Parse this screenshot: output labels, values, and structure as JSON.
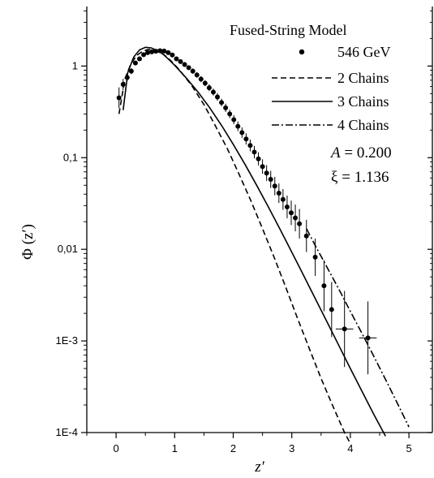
{
  "chart_data": {
    "type": "scatter",
    "title": "",
    "xlabel": "z′",
    "ylabel": "Φ (z′)",
    "xlim": [
      -0.5,
      5.4
    ],
    "ylim_log10": [
      -4,
      0.65
    ],
    "log_y": true,
    "x_ticks": [
      0,
      1,
      2,
      3,
      4,
      5
    ],
    "x_tick_labels": [
      "0",
      "1",
      "2",
      "3",
      "4",
      "5"
    ],
    "y_ticks": [
      0.0001,
      0.001,
      0.01,
      0.1,
      1
    ],
    "y_tick_labels": [
      "1E-4",
      "1E-3",
      "0,01",
      "0,1",
      "1"
    ],
    "legend_title": "Fused-String Model",
    "legend_position": "top-right",
    "annotations": {
      "param_a_symbol": "A",
      "param_a_value": " = 0.200",
      "param_xi_symbol": "ξ",
      "param_xi_value": " = 1.136"
    },
    "series": [
      {
        "name": "546 GeV",
        "style": "points-with-errorbars",
        "x": [
          0.05,
          0.12,
          0.19,
          0.26,
          0.33,
          0.4,
          0.47,
          0.54,
          0.61,
          0.68,
          0.75,
          0.82,
          0.89,
          0.96,
          1.03,
          1.1,
          1.17,
          1.24,
          1.31,
          1.38,
          1.45,
          1.52,
          1.59,
          1.66,
          1.73,
          1.8,
          1.87,
          1.94,
          2.01,
          2.08,
          2.15,
          2.22,
          2.29,
          2.36,
          2.43,
          2.5,
          2.57,
          2.64,
          2.71,
          2.78,
          2.85,
          2.92,
          2.99,
          3.06,
          3.13,
          3.25,
          3.4,
          3.55,
          3.68,
          3.9,
          4.3
        ],
        "y": [
          0.45,
          0.63,
          0.75,
          0.88,
          1.08,
          1.2,
          1.33,
          1.4,
          1.43,
          1.45,
          1.47,
          1.46,
          1.4,
          1.32,
          1.2,
          1.12,
          1.04,
          0.96,
          0.88,
          0.8,
          0.72,
          0.65,
          0.58,
          0.52,
          0.46,
          0.4,
          0.35,
          0.3,
          0.26,
          0.22,
          0.188,
          0.16,
          0.136,
          0.115,
          0.097,
          0.08,
          0.068,
          0.058,
          0.049,
          0.041,
          0.035,
          0.029,
          0.025,
          0.022,
          0.019,
          0.014,
          0.0082,
          0.004,
          0.0022,
          0.00135,
          0.00108
        ],
        "y_err_factor": [
          1.3,
          1.15,
          1.1,
          1.08,
          1.06,
          1.05,
          1.05,
          1.05,
          1.05,
          1.05,
          1.05,
          1.05,
          1.05,
          1.05,
          1.05,
          1.05,
          1.06,
          1.06,
          1.07,
          1.07,
          1.08,
          1.08,
          1.09,
          1.09,
          1.1,
          1.1,
          1.11,
          1.11,
          1.12,
          1.13,
          1.14,
          1.15,
          1.16,
          1.17,
          1.18,
          1.2,
          1.22,
          1.24,
          1.26,
          1.28,
          1.3,
          1.33,
          1.36,
          1.4,
          1.45,
          1.5,
          1.6,
          1.9,
          2.0,
          2.6,
          2.5
        ],
        "x_err": [
          0,
          0,
          0,
          0,
          0,
          0,
          0,
          0,
          0,
          0,
          0,
          0,
          0,
          0,
          0,
          0,
          0,
          0,
          0,
          0,
          0,
          0,
          0,
          0,
          0,
          0,
          0,
          0,
          0,
          0,
          0,
          0,
          0,
          0,
          0,
          0,
          0,
          0,
          0,
          0,
          0,
          0,
          0,
          0,
          0,
          0,
          0,
          0,
          0,
          0.15,
          0.15
        ]
      },
      {
        "name": "2 Chains",
        "style": "dashed",
        "x": [
          0.05,
          0.15,
          0.25,
          0.35,
          0.45,
          0.55,
          0.65,
          0.75,
          0.85,
          0.95,
          1.1,
          1.3,
          1.5,
          1.7,
          1.9,
          2.1,
          2.3,
          2.5,
          2.7,
          2.9,
          3.1,
          3.3,
          3.5,
          3.7,
          3.9,
          3.98
        ],
        "y": [
          0.3,
          0.72,
          1.05,
          1.3,
          1.45,
          1.52,
          1.5,
          1.42,
          1.28,
          1.12,
          0.88,
          0.6,
          0.38,
          0.22,
          0.125,
          0.066,
          0.034,
          0.0168,
          0.0081,
          0.0038,
          0.00175,
          0.00082,
          0.00039,
          0.000195,
          0.0001,
          8e-05
        ]
      },
      {
        "name": "3 Chains",
        "style": "solid",
        "x": [
          0.12,
          0.2,
          0.3,
          0.4,
          0.5,
          0.6,
          0.7,
          0.8,
          0.9,
          1.0,
          1.2,
          1.4,
          1.6,
          1.8,
          2.0,
          2.2,
          2.4,
          2.6,
          2.8,
          3.0,
          3.2,
          3.4,
          3.6,
          3.8,
          4.0,
          4.2,
          4.4,
          4.6
        ],
        "y": [
          0.33,
          0.85,
          1.25,
          1.5,
          1.6,
          1.58,
          1.48,
          1.35,
          1.18,
          1.02,
          0.74,
          0.52,
          0.35,
          0.225,
          0.14,
          0.085,
          0.05,
          0.029,
          0.0165,
          0.0093,
          0.0052,
          0.0029,
          0.00162,
          0.0009,
          0.0005,
          0.00028,
          0.000158,
          9.15e-05
        ]
      },
      {
        "name": "4 Chains",
        "style": "dash-dot",
        "x": [
          3.25,
          3.4,
          3.6,
          3.8,
          4.0,
          4.2,
          4.4,
          4.6,
          4.8,
          5.0
        ],
        "y": [
          0.0168,
          0.011,
          0.0064,
          0.0037,
          0.0021,
          0.0012,
          0.00068,
          0.00038,
          0.00021,
          0.000115
        ]
      }
    ]
  }
}
